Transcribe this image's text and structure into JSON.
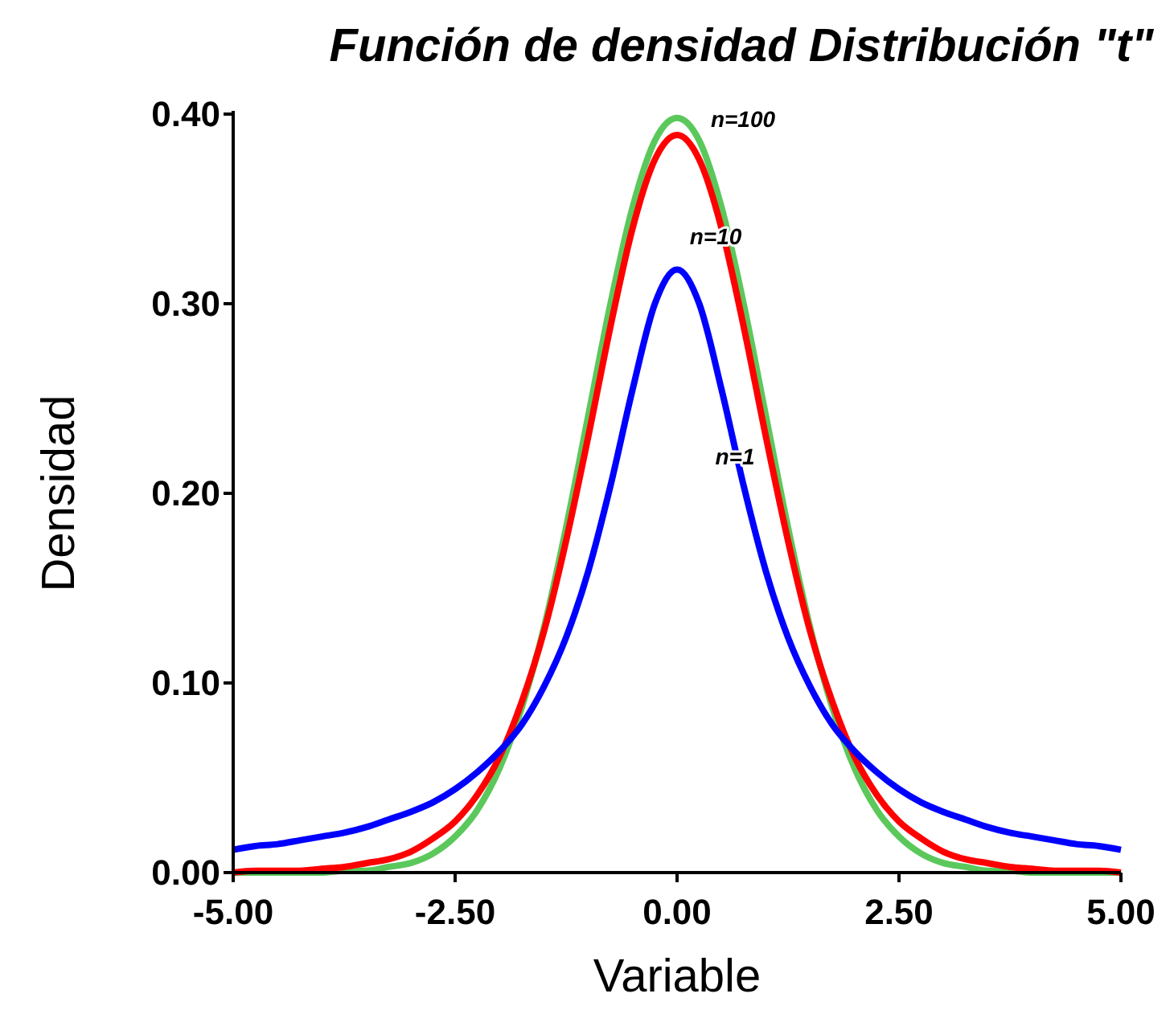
{
  "chart_data": {
    "type": "line",
    "title": "Función de densidad Distribución \"t\"",
    "xlabel": "Variable",
    "ylabel": "Densidad",
    "x": [
      -5,
      -4.75,
      -4.5,
      -4.25,
      -4,
      -3.75,
      -3.5,
      -3.25,
      -3,
      -2.75,
      -2.5,
      -2.25,
      -2,
      -1.75,
      -1.5,
      -1.25,
      -1,
      -0.75,
      -0.5,
      -0.25,
      0,
      0.25,
      0.5,
      0.75,
      1,
      1.25,
      1.5,
      1.75,
      2,
      2.25,
      2.5,
      2.75,
      3,
      3.25,
      3.5,
      3.75,
      4,
      4.25,
      4.5,
      4.75,
      5
    ],
    "series": [
      {
        "color": "#5bc85b",
        "values": [
          0,
          0,
          0,
          0,
          0,
          0.001,
          0.001,
          0.003,
          0.005,
          0.01,
          0.019,
          0.033,
          0.055,
          0.087,
          0.129,
          0.182,
          0.241,
          0.3,
          0.351,
          0.386,
          0.398,
          0.386,
          0.351,
          0.3,
          0.241,
          0.182,
          0.129,
          0.087,
          0.055,
          0.033,
          0.019,
          0.01,
          0.005,
          0.003,
          0.001,
          0.001,
          0,
          0,
          0,
          0,
          0
        ]
      },
      {
        "color": "#ff0000",
        "values": [
          0,
          0.001,
          0.001,
          0.001,
          0.002,
          0.003,
          0.005,
          0.007,
          0.011,
          0.018,
          0.027,
          0.041,
          0.061,
          0.09,
          0.127,
          0.175,
          0.23,
          0.288,
          0.34,
          0.376,
          0.389,
          0.376,
          0.34,
          0.288,
          0.23,
          0.175,
          0.127,
          0.09,
          0.061,
          0.041,
          0.027,
          0.018,
          0.011,
          0.007,
          0.005,
          0.003,
          0.002,
          0.001,
          0.001,
          0.001,
          0
        ]
      },
      {
        "color": "#0000ff",
        "values": [
          0.012,
          0.014,
          0.015,
          0.017,
          0.019,
          0.021,
          0.024,
          0.028,
          0.032,
          0.037,
          0.044,
          0.053,
          0.064,
          0.078,
          0.098,
          0.124,
          0.159,
          0.204,
          0.255,
          0.3,
          0.318,
          0.3,
          0.255,
          0.204,
          0.159,
          0.124,
          0.098,
          0.078,
          0.064,
          0.053,
          0.044,
          0.037,
          0.032,
          0.028,
          0.024,
          0.021,
          0.019,
          0.017,
          0.015,
          0.014,
          0.012
        ]
      }
    ],
    "xlim": [
      -5,
      5
    ],
    "ylim": [
      0,
      0.4
    ],
    "xticks": [
      {
        "value": -5,
        "label": "-5.00"
      },
      {
        "value": -2.5,
        "label": "-2.50"
      },
      {
        "value": 0,
        "label": "0.00"
      },
      {
        "value": 2.5,
        "label": "2.50"
      },
      {
        "value": 5,
        "label": "5.00"
      }
    ],
    "yticks": [
      {
        "value": 0,
        "label": "0.00"
      },
      {
        "value": 0.1,
        "label": "0.10"
      },
      {
        "value": 0.2,
        "label": "0.20"
      },
      {
        "value": 0.3,
        "label": "0.30"
      },
      {
        "value": 0.4,
        "label": "0.40"
      }
    ],
    "annotations": [
      "n=100",
      "n=10",
      "n=1"
    ],
    "grid": false,
    "marker": "none",
    "line_style": "solid"
  }
}
